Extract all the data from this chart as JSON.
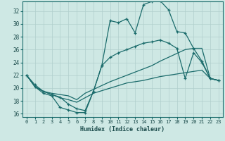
{
  "xlabel": "Humidex (Indice chaleur)",
  "ylabel": "",
  "xlim": [
    -0.5,
    23.5
  ],
  "ylim": [
    15.5,
    33.5
  ],
  "xticks": [
    0,
    1,
    2,
    3,
    4,
    5,
    6,
    7,
    8,
    9,
    10,
    11,
    12,
    13,
    14,
    15,
    16,
    17,
    18,
    19,
    20,
    21,
    22,
    23
  ],
  "yticks": [
    16,
    18,
    20,
    22,
    24,
    26,
    28,
    30,
    32
  ],
  "background_color": "#cee8e4",
  "grid_color": "#b0cfcc",
  "line_color": "#1a6b6b",
  "line1_x": [
    0,
    1,
    2,
    3,
    4,
    5,
    6,
    7,
    8,
    9,
    10,
    11,
    12,
    13,
    14,
    15,
    16,
    17,
    18,
    19,
    20,
    21,
    22,
    23
  ],
  "line1_y": [
    22,
    20.2,
    19.2,
    18.8,
    17.0,
    16.6,
    16.2,
    16.2,
    19.5,
    23.5,
    30.5,
    30.2,
    30.8,
    28.6,
    33.0,
    33.5,
    33.6,
    32.2,
    28.8,
    28.6,
    26.2,
    24.2,
    21.5,
    21.2
  ],
  "line2_x": [
    0,
    1,
    2,
    3,
    4,
    5,
    6,
    7,
    8,
    9,
    10,
    11,
    12,
    13,
    14,
    15,
    16,
    17,
    18,
    19,
    20,
    21,
    22,
    23
  ],
  "line2_y": [
    22,
    20.2,
    19.5,
    19.2,
    19.0,
    18.8,
    18.2,
    19.2,
    19.8,
    20.4,
    21.0,
    21.5,
    22.0,
    22.5,
    23.0,
    23.5,
    24.2,
    24.8,
    25.4,
    26.0,
    26.2,
    26.2,
    21.5,
    21.2
  ],
  "line3_x": [
    0,
    1,
    2,
    3,
    4,
    5,
    6,
    7,
    8,
    9,
    10,
    11,
    12,
    13,
    14,
    15,
    16,
    17,
    18,
    19,
    20,
    21,
    22,
    23
  ],
  "line3_y": [
    22,
    20.2,
    19.5,
    19.0,
    18.5,
    18.2,
    17.8,
    18.5,
    19.2,
    19.6,
    20.0,
    20.4,
    20.8,
    21.0,
    21.2,
    21.5,
    21.8,
    22.0,
    22.2,
    22.4,
    22.6,
    22.8,
    21.5,
    21.2
  ],
  "line4_x": [
    0,
    1,
    2,
    3,
    4,
    5,
    6,
    7,
    8,
    9,
    10,
    11,
    12,
    13,
    14,
    15,
    16,
    17,
    18,
    19,
    20,
    21,
    22,
    23
  ],
  "line4_y": [
    22,
    20.5,
    19.5,
    19.0,
    18.6,
    17.5,
    16.8,
    16.5,
    19.5,
    23.5,
    24.8,
    25.5,
    26.0,
    26.5,
    27.0,
    27.2,
    27.5,
    27.0,
    26.2,
    21.5,
    25.5,
    24.0,
    21.5,
    21.2
  ]
}
